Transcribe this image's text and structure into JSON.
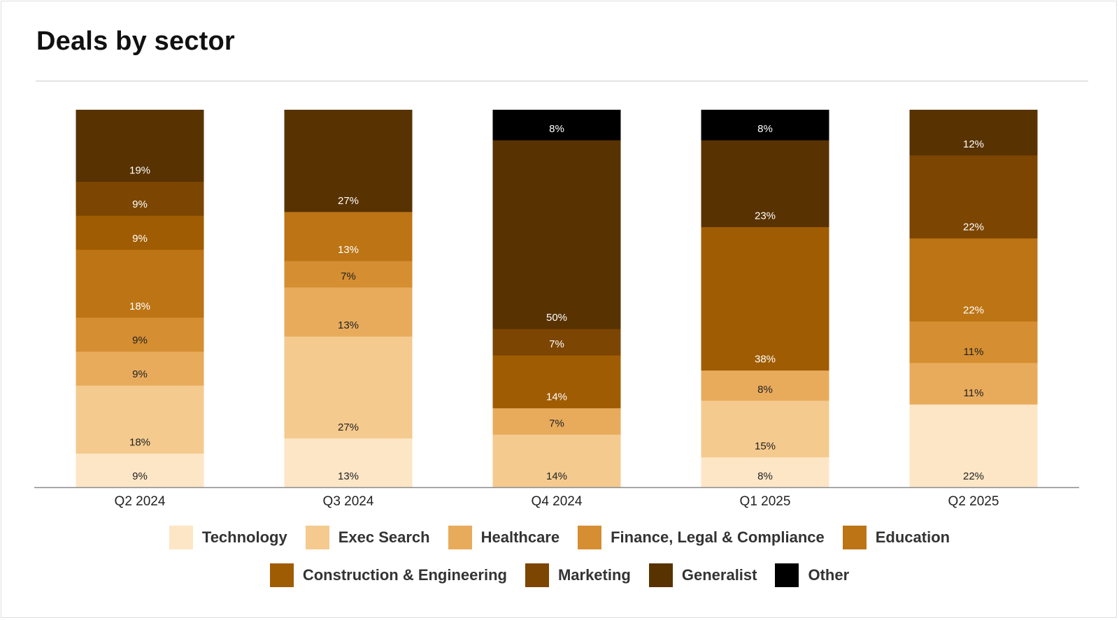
{
  "chart_data": {
    "type": "bar",
    "stacked": true,
    "title": "Deals by sector",
    "categories": [
      "Q2 2024",
      "Q3 2024",
      "Q4 2024",
      "Q1 2025",
      "Q2 2025"
    ],
    "ylim": [
      0,
      100
    ],
    "grid": false,
    "legend": "bottom",
    "series": [
      {
        "name": "Technology",
        "color": "#fde6c6",
        "values": [
          9,
          13,
          0,
          8,
          22
        ],
        "labels": [
          "9%",
          "13%",
          null,
          "8%",
          "22%"
        ]
      },
      {
        "name": "Exec Search",
        "color": "#f4ca8e",
        "values": [
          18,
          27,
          14,
          15,
          0
        ],
        "labels": [
          "18%",
          "27%",
          "14%",
          "15%",
          null
        ]
      },
      {
        "name": "Healthcare",
        "color": "#e8ab5c",
        "values": [
          9,
          13,
          7,
          8,
          11
        ],
        "labels": [
          "9%",
          "13%",
          "7%",
          "8%",
          "11%"
        ]
      },
      {
        "name": "Finance, Legal & Compliance",
        "color": "#d58e31",
        "values": [
          9,
          7,
          0,
          0,
          11
        ],
        "labels": [
          "9%",
          "7%",
          null,
          null,
          "11%"
        ]
      },
      {
        "name": "Education",
        "color": "#bc7414",
        "values": [
          18,
          13,
          0,
          0,
          22
        ],
        "labels": [
          "18%",
          "13%",
          null,
          null,
          "22%"
        ]
      },
      {
        "name": "Construction & Engineering",
        "color": "#a05c02",
        "values": [
          9,
          0,
          14,
          38,
          0
        ],
        "labels": [
          "9%",
          null,
          "14%",
          "38%",
          null
        ]
      },
      {
        "name": "Marketing",
        "color": "#7c4501",
        "values": [
          9,
          0,
          7,
          0,
          22
        ],
        "labels": [
          "9%",
          null,
          "7%",
          null,
          "22%"
        ]
      },
      {
        "name": "Generalist",
        "color": "#583200",
        "values": [
          19,
          27,
          50,
          23,
          12
        ],
        "labels": [
          "19%",
          "27%",
          "50%",
          "23%",
          "12%"
        ]
      },
      {
        "name": "Other",
        "color": "#000000",
        "values": [
          0,
          0,
          8,
          8,
          0
        ],
        "labels": [
          null,
          null,
          "8%",
          "8%",
          null
        ]
      }
    ]
  }
}
